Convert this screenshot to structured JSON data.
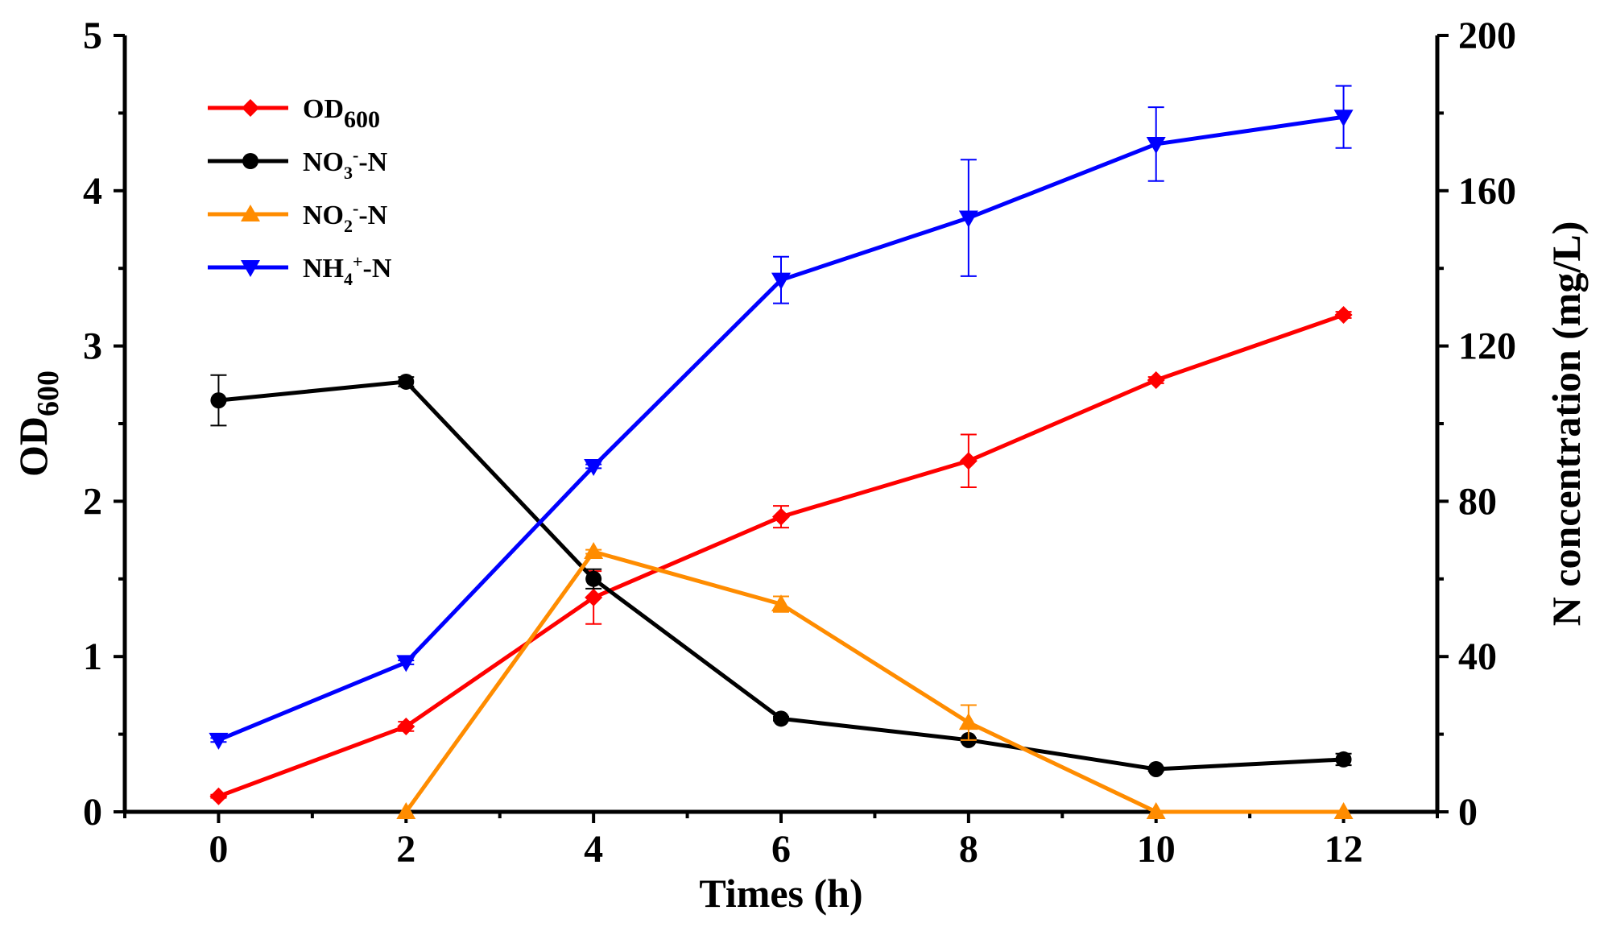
{
  "chart_data": {
    "type": "line",
    "title": "",
    "xlabel": "Times (h)",
    "ylabel_left": {
      "main": "OD",
      "sub": "600"
    },
    "ylabel_right": "N concentration (mg/L)",
    "xlim": [
      -1,
      13
    ],
    "ylim_left": [
      0,
      5
    ],
    "ylim_right": [
      0,
      200
    ],
    "x_ticks": [
      0,
      2,
      4,
      6,
      8,
      10,
      12
    ],
    "x_minor_ticks": [
      -1,
      1,
      3,
      5,
      7,
      9,
      11,
      13
    ],
    "y_left_ticks": [
      0,
      1,
      2,
      3,
      4,
      5
    ],
    "y_right_ticks": [
      0,
      40,
      80,
      120,
      160,
      200
    ],
    "grid": false,
    "legend_position": "top-left",
    "series": [
      {
        "name": "OD600",
        "legend": {
          "main": "OD",
          "sub": "600",
          "sup": "",
          "suffix": ""
        },
        "axis": "left",
        "color": "#ff0000",
        "marker": "diamond",
        "x": [
          0,
          2,
          4,
          6,
          8,
          10,
          12
        ],
        "y": [
          0.1,
          0.55,
          1.38,
          1.9,
          2.26,
          2.78,
          3.2
        ],
        "err": [
          0.01,
          0.03,
          0.17,
          0.07,
          0.17,
          0.02,
          0.02
        ]
      },
      {
        "name": "NO3--N",
        "legend": {
          "main": "NO",
          "sub": "3",
          "sup": "-",
          "suffix": "-N"
        },
        "axis": "right",
        "color": "#000000",
        "marker": "circle",
        "x": [
          0,
          2,
          4,
          6,
          8,
          10,
          12
        ],
        "y": [
          106,
          110.8,
          60,
          24,
          18.5,
          11,
          13.5
        ],
        "err": [
          6.5,
          1.2,
          2.5,
          0.5,
          0.5,
          0.5,
          1.5
        ]
      },
      {
        "name": "NO2--N",
        "legend": {
          "main": "NO",
          "sub": "2",
          "sup": "-",
          "suffix": "-N"
        },
        "axis": "right",
        "color": "#ff8c00",
        "marker": "triangle-up",
        "x": [
          2,
          4,
          6,
          8,
          10,
          12
        ],
        "y": [
          0,
          67,
          53.5,
          23,
          0,
          0
        ],
        "err": [
          0,
          0.5,
          2,
          4.5,
          0,
          0
        ]
      },
      {
        "name": "NH4+-N",
        "legend": {
          "main": "NH",
          "sub": "4",
          "sup": "+",
          "suffix": "-N"
        },
        "axis": "right",
        "color": "#0000ff",
        "marker": "triangle-down",
        "x": [
          0,
          2,
          4,
          6,
          8,
          10,
          12
        ],
        "y": [
          18.5,
          38.5,
          89,
          137,
          153,
          172,
          179
        ],
        "err": [
          0.5,
          0.5,
          0.5,
          6,
          15,
          9.5,
          8
        ]
      }
    ]
  }
}
